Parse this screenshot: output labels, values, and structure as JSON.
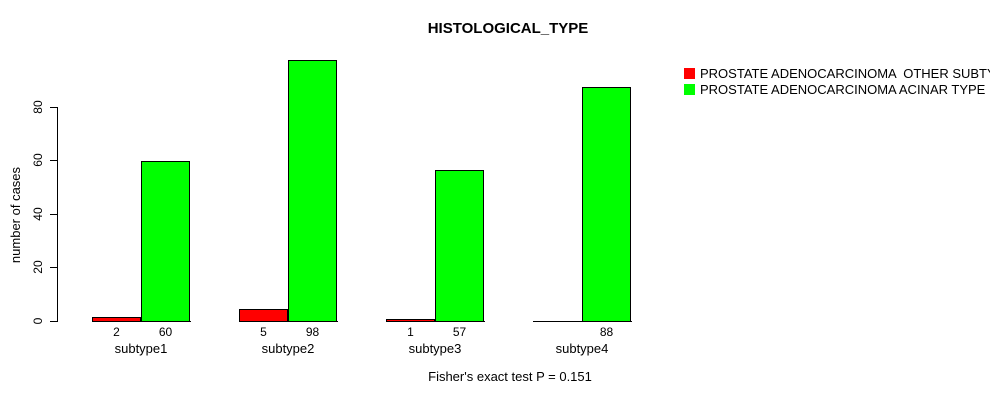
{
  "title": "HISTOLOGICAL_TYPE",
  "y_axis": {
    "label": "number of cases",
    "ticks": [
      "0",
      "20",
      "40",
      "60",
      "80"
    ]
  },
  "footer": "Fisher's exact test P = 0.151",
  "legend": {
    "items": [
      {
        "label": "PROSTATE ADENOCARCINOMA  OTHER SUBTYPE",
        "color": "#FF0000"
      },
      {
        "label": "PROSTATE ADENOCARCINOMA ACINAR TYPE",
        "color": "#00FF00"
      }
    ]
  },
  "chart_data": {
    "type": "bar",
    "title": "HISTOLOGICAL_TYPE",
    "xlabel": "",
    "ylabel": "number of cases",
    "categories": [
      "subtype1",
      "subtype2",
      "subtype3",
      "subtype4"
    ],
    "series": [
      {
        "name": "PROSTATE ADENOCARCINOMA  OTHER SUBTYPE",
        "color": "#FF0000",
        "values": [
          2,
          5,
          1,
          0
        ]
      },
      {
        "name": "PROSTATE ADENOCARCINOMA ACINAR TYPE",
        "color": "#00FF00",
        "values": [
          60,
          98,
          57,
          88
        ]
      }
    ],
    "bar_value_labels": [
      [
        "2",
        "60"
      ],
      [
        "5",
        "98"
      ],
      [
        "1",
        "57"
      ],
      [
        "",
        "88"
      ]
    ],
    "yticks": [
      0,
      20,
      40,
      60,
      80
    ],
    "ylim": [
      0,
      98
    ],
    "grid": false,
    "legend_position": "top-right-outside",
    "annotation": "Fisher's exact test P = 0.151"
  }
}
